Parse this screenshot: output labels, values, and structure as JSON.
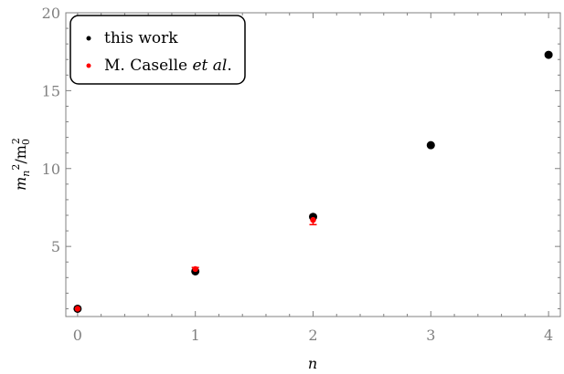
{
  "chart_data": {
    "type": "scatter",
    "xlabel": "n",
    "ylabel": "m_n^2/m_0^2",
    "xlim": [
      -0.1,
      4.1
    ],
    "ylim": [
      0.5,
      20
    ],
    "x_ticks": [
      0,
      1,
      2,
      3,
      4
    ],
    "x_tick_labels": [
      "0",
      "1",
      "2",
      "3",
      "4"
    ],
    "y_ticks": [
      5,
      10,
      15,
      20
    ],
    "y_tick_labels": [
      "5",
      "10",
      "15",
      "20"
    ],
    "grid": false,
    "legend_position": "top-left",
    "series": [
      {
        "name": "this work",
        "color": "#000000",
        "points": [
          {
            "x": 0,
            "y": 1.0
          },
          {
            "x": 1,
            "y": 3.4
          },
          {
            "x": 2,
            "y": 6.9
          },
          {
            "x": 3,
            "y": 11.5
          },
          {
            "x": 4,
            "y": 17.3
          }
        ]
      },
      {
        "name": "M. Caselle et al.",
        "name_parts": {
          "prefix": "M. Caselle ",
          "italic": "et al",
          "suffix": "."
        },
        "color": "#ff0000",
        "points": [
          {
            "x": 0,
            "y": 1.0,
            "err": 0.0
          },
          {
            "x": 1,
            "y": 3.55,
            "err": 0.1
          },
          {
            "x": 2,
            "y": 6.7,
            "err": 0.3
          }
        ]
      }
    ]
  }
}
